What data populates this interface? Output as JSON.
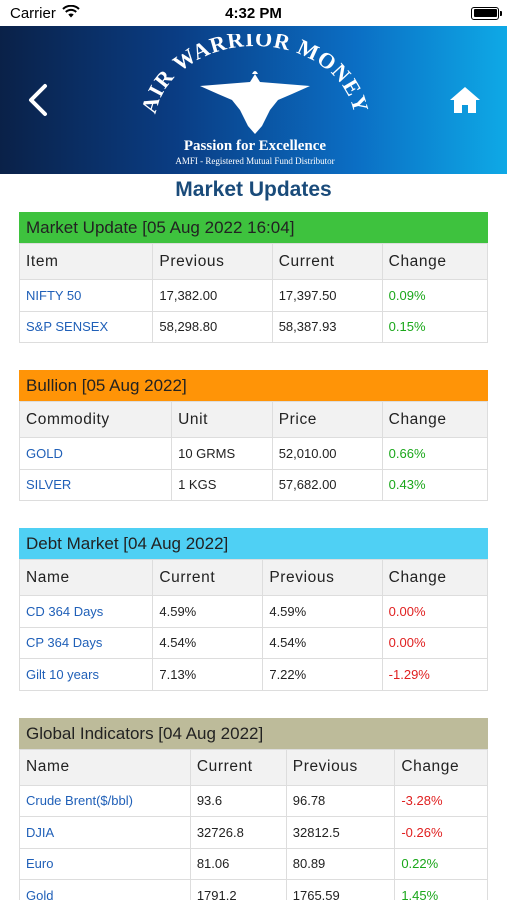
{
  "status": {
    "carrier": "Carrier",
    "time": "4:32 PM"
  },
  "header": {
    "logo_text": "AIR WARRIOR MONEY",
    "tagline": "Passion for Excellence",
    "subtagline": "AMFI - Registered Mutual Fund Distributor"
  },
  "page_title": "Market Updates",
  "colors": {
    "market": "#3ec23e",
    "bullion": "#ff9407",
    "debt": "#4fd0f4",
    "global": "#bdbb9a",
    "positive": "#1aa71a",
    "negative": "#e02020",
    "link": "#2060b8"
  },
  "market": {
    "title": "Market Update [05 Aug 2022 16:04]",
    "headers": [
      "Item",
      "Previous",
      "Current",
      "Change"
    ],
    "rows": [
      {
        "name": "NIFTY 50",
        "a": "17,382.00",
        "b": "17,397.50",
        "change": "0.09%"
      },
      {
        "name": "S&P SENSEX",
        "a": "58,298.80",
        "b": "58,387.93",
        "change": "0.15%"
      }
    ]
  },
  "bullion": {
    "title": "Bullion [05 Aug 2022]",
    "headers": [
      "Commodity",
      "Unit",
      "Price",
      "Change"
    ],
    "rows": [
      {
        "name": "GOLD",
        "a": "10 GRMS",
        "b": "52,010.00",
        "change": "0.66%"
      },
      {
        "name": "SILVER",
        "a": "1 KGS",
        "b": "57,682.00",
        "change": "0.43%"
      }
    ]
  },
  "debt": {
    "title": "Debt Market [04 Aug 2022]",
    "headers": [
      "Name",
      "Current",
      "Previous",
      "Change"
    ],
    "rows": [
      {
        "name": "CD 364 Days",
        "a": "4.59%",
        "b": "4.59%",
        "change": "0.00%"
      },
      {
        "name": "CP 364 Days",
        "a": "4.54%",
        "b": "4.54%",
        "change": "0.00%"
      },
      {
        "name": "Gilt 10 years",
        "a": "7.13%",
        "b": "7.22%",
        "change": "-1.29%"
      }
    ]
  },
  "global": {
    "title": "Global Indicators [04 Aug 2022]",
    "headers": [
      "Name",
      "Current",
      "Previous",
      "Change"
    ],
    "rows": [
      {
        "name": "Crude Brent($/bbl)",
        "a": "93.6",
        "b": "96.78",
        "change": "-3.28%"
      },
      {
        "name": "DJIA",
        "a": "32726.8",
        "b": "32812.5",
        "change": "-0.26%"
      },
      {
        "name": "Euro",
        "a": "81.06",
        "b": "80.89",
        "change": "0.22%"
      },
      {
        "name": "Gold",
        "a": "1791.2",
        "b": "1765.59",
        "change": "1.45%"
      }
    ]
  }
}
